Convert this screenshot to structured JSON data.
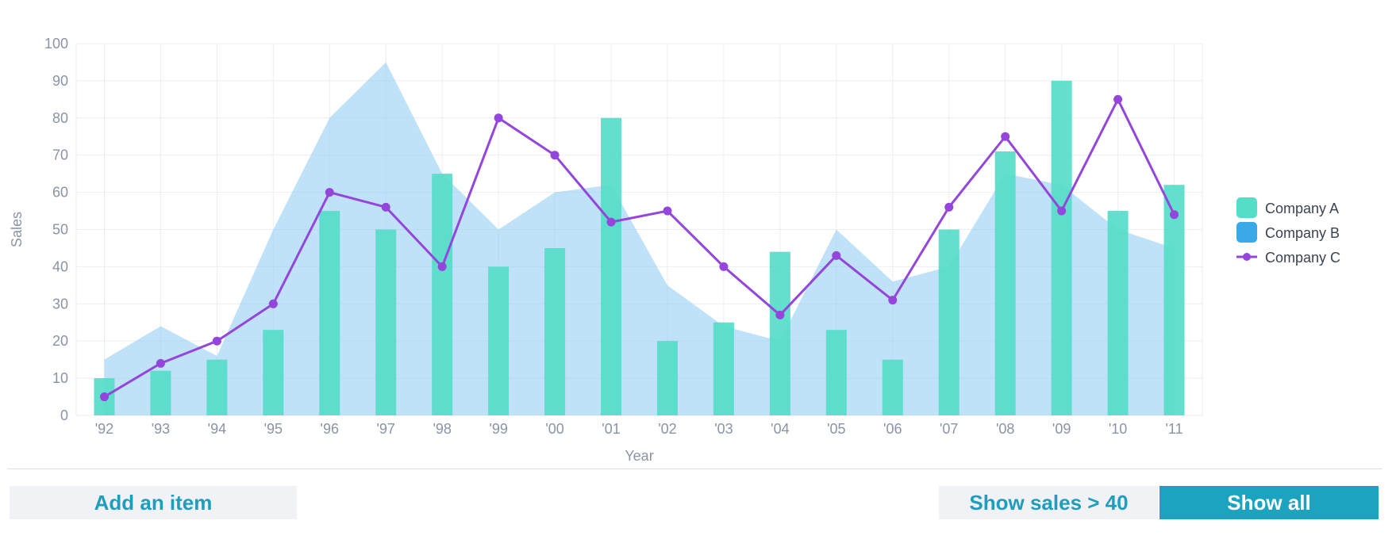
{
  "chart_data": {
    "type": "bar",
    "categories": [
      "'92",
      "'93",
      "'94",
      "'95",
      "'96",
      "'97",
      "'98",
      "'99",
      "'00",
      "'01",
      "'02",
      "'03",
      "'04",
      "'05",
      "'06",
      "'07",
      "'08",
      "'09",
      "'10",
      "'11"
    ],
    "series": [
      {
        "name": "Company A",
        "type": "bar",
        "color": "#56ddc9",
        "values": [
          10,
          12,
          15,
          23,
          55,
          50,
          65,
          40,
          45,
          80,
          20,
          25,
          44,
          23,
          15,
          50,
          71,
          90,
          55,
          62
        ]
      },
      {
        "name": "Company B",
        "type": "area",
        "color": "#39a9e8",
        "values": [
          15,
          24,
          16,
          50,
          80,
          95,
          65,
          50,
          60,
          62,
          35,
          24,
          20,
          50,
          36,
          40,
          65,
          62,
          50,
          45
        ]
      },
      {
        "name": "Company C",
        "type": "line",
        "color": "#9345dc",
        "values": [
          5,
          14,
          20,
          30,
          60,
          56,
          40,
          80,
          70,
          52,
          55,
          40,
          27,
          43,
          31,
          56,
          75,
          55,
          85,
          54
        ]
      }
    ],
    "xlabel": "Year",
    "ylabel": "Sales",
    "ylim": [
      0,
      100
    ],
    "yticks": [
      0,
      10,
      20,
      30,
      40,
      50,
      60,
      70,
      80,
      90,
      100
    ],
    "grid": true,
    "legend_position": "right"
  },
  "buttons": {
    "add": "Add an item",
    "filter": "Show sales > 40",
    "all": "Show all"
  }
}
